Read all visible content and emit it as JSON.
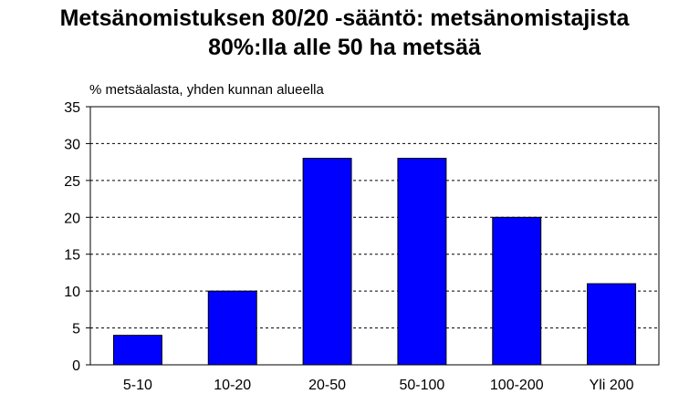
{
  "chart_data": {
    "type": "bar",
    "title_lines": [
      "Metsänomistuksen 80/20 -sääntö: metsänomistajista",
      "80%:lla alle 50 ha metsää"
    ],
    "ylabel": "% metsäalasta, yhden kunnan alueella",
    "xlabel": "",
    "categories": [
      "5-10",
      "10-20",
      "20-50",
      "50-100",
      "100-200",
      "Yli 200"
    ],
    "values": [
      4,
      10,
      28,
      28,
      20,
      11
    ],
    "ylim": [
      0,
      35
    ],
    "yticks": [
      0,
      5,
      10,
      15,
      20,
      25,
      30,
      35
    ],
    "grid": true,
    "bar_color": "#0000ff"
  }
}
